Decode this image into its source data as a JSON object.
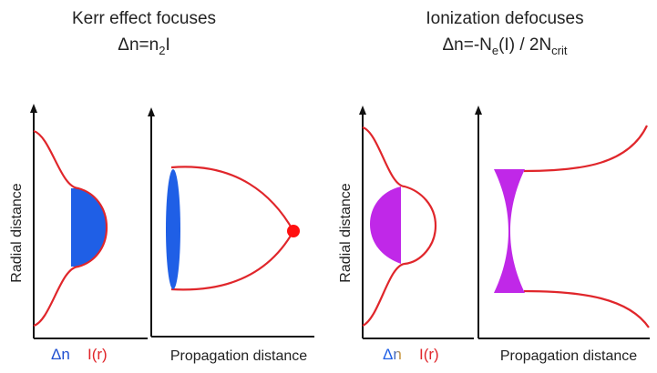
{
  "colors": {
    "curve": "#e0262b",
    "kerr_fill": "#1f5fe6",
    "ion_fill": "#c028e8",
    "axis": "#111111",
    "text": "#222222"
  },
  "left_panel": {
    "title": "Kerr effect focuses",
    "formula_main": "Δn=n",
    "formula_sub": "2",
    "formula_tail": "I",
    "ylabel": "Radial distance",
    "dn_label": "Δn",
    "ir_label": "I(r)",
    "xlabel": "Propagation distance"
  },
  "right_panel": {
    "title": "Ionization defocuses",
    "formula_main": "Δn=-N",
    "formula_sub1": "e",
    "formula_mid": "(I) / 2N",
    "formula_sub2": "crit",
    "ylabel": "Radial distance",
    "dn_label": "Δn",
    "ir_label": "I(r)",
    "xlabel": "Propagation distance"
  }
}
